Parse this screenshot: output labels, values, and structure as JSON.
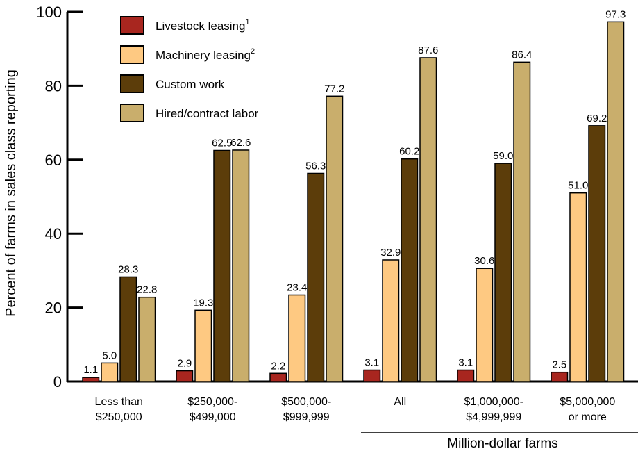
{
  "chart_data": {
    "type": "bar",
    "ylabel": "Percent of farms in sales class reporting",
    "ylim": [
      0,
      100
    ],
    "yticks": [
      "0",
      "20",
      "40",
      "60",
      "80",
      "100"
    ],
    "categories": [
      [
        "Less than",
        "$250,000"
      ],
      [
        "$250,000-",
        "$499,000"
      ],
      [
        "$500,000-",
        "$999,999"
      ],
      [
        "All",
        ""
      ],
      [
        "$1,000,000-",
        "$4,999,999"
      ],
      [
        "$5,000,000",
        "or more"
      ]
    ],
    "group_label": "Million-dollar farms",
    "legend_position": "top-left",
    "grid": false,
    "series": [
      {
        "name": "Livestock leasing",
        "superscript": "1",
        "color": "#a8261f",
        "values": [
          1.1,
          2.9,
          2.2,
          3.1,
          3.1,
          2.5
        ],
        "labels": [
          "1.1",
          "2.9",
          "2.2",
          "3.1",
          "3.1",
          "2.5"
        ]
      },
      {
        "name": "Machinery leasing",
        "superscript": "2",
        "color": "#fec982",
        "values": [
          5.0,
          19.3,
          23.4,
          32.9,
          30.6,
          51.0
        ],
        "labels": [
          "5.0",
          "19.3",
          "23.4",
          "32.9",
          "30.6",
          "51.0"
        ]
      },
      {
        "name": "Custom work",
        "superscript": "",
        "color": "#5c3d0a",
        "values": [
          28.3,
          62.5,
          56.3,
          60.2,
          59.0,
          69.2
        ],
        "labels": [
          "28.3",
          "62.5",
          "56.3",
          "60.2",
          "59.0",
          "69.2"
        ]
      },
      {
        "name": "Hired/contract labor",
        "superscript": "",
        "color": "#c9ae6c",
        "values": [
          22.8,
          62.6,
          77.2,
          87.6,
          86.4,
          97.3
        ],
        "labels": [
          "22.8",
          "62.6",
          "77.2",
          "87.6",
          "86.4",
          "97.3"
        ]
      }
    ]
  }
}
